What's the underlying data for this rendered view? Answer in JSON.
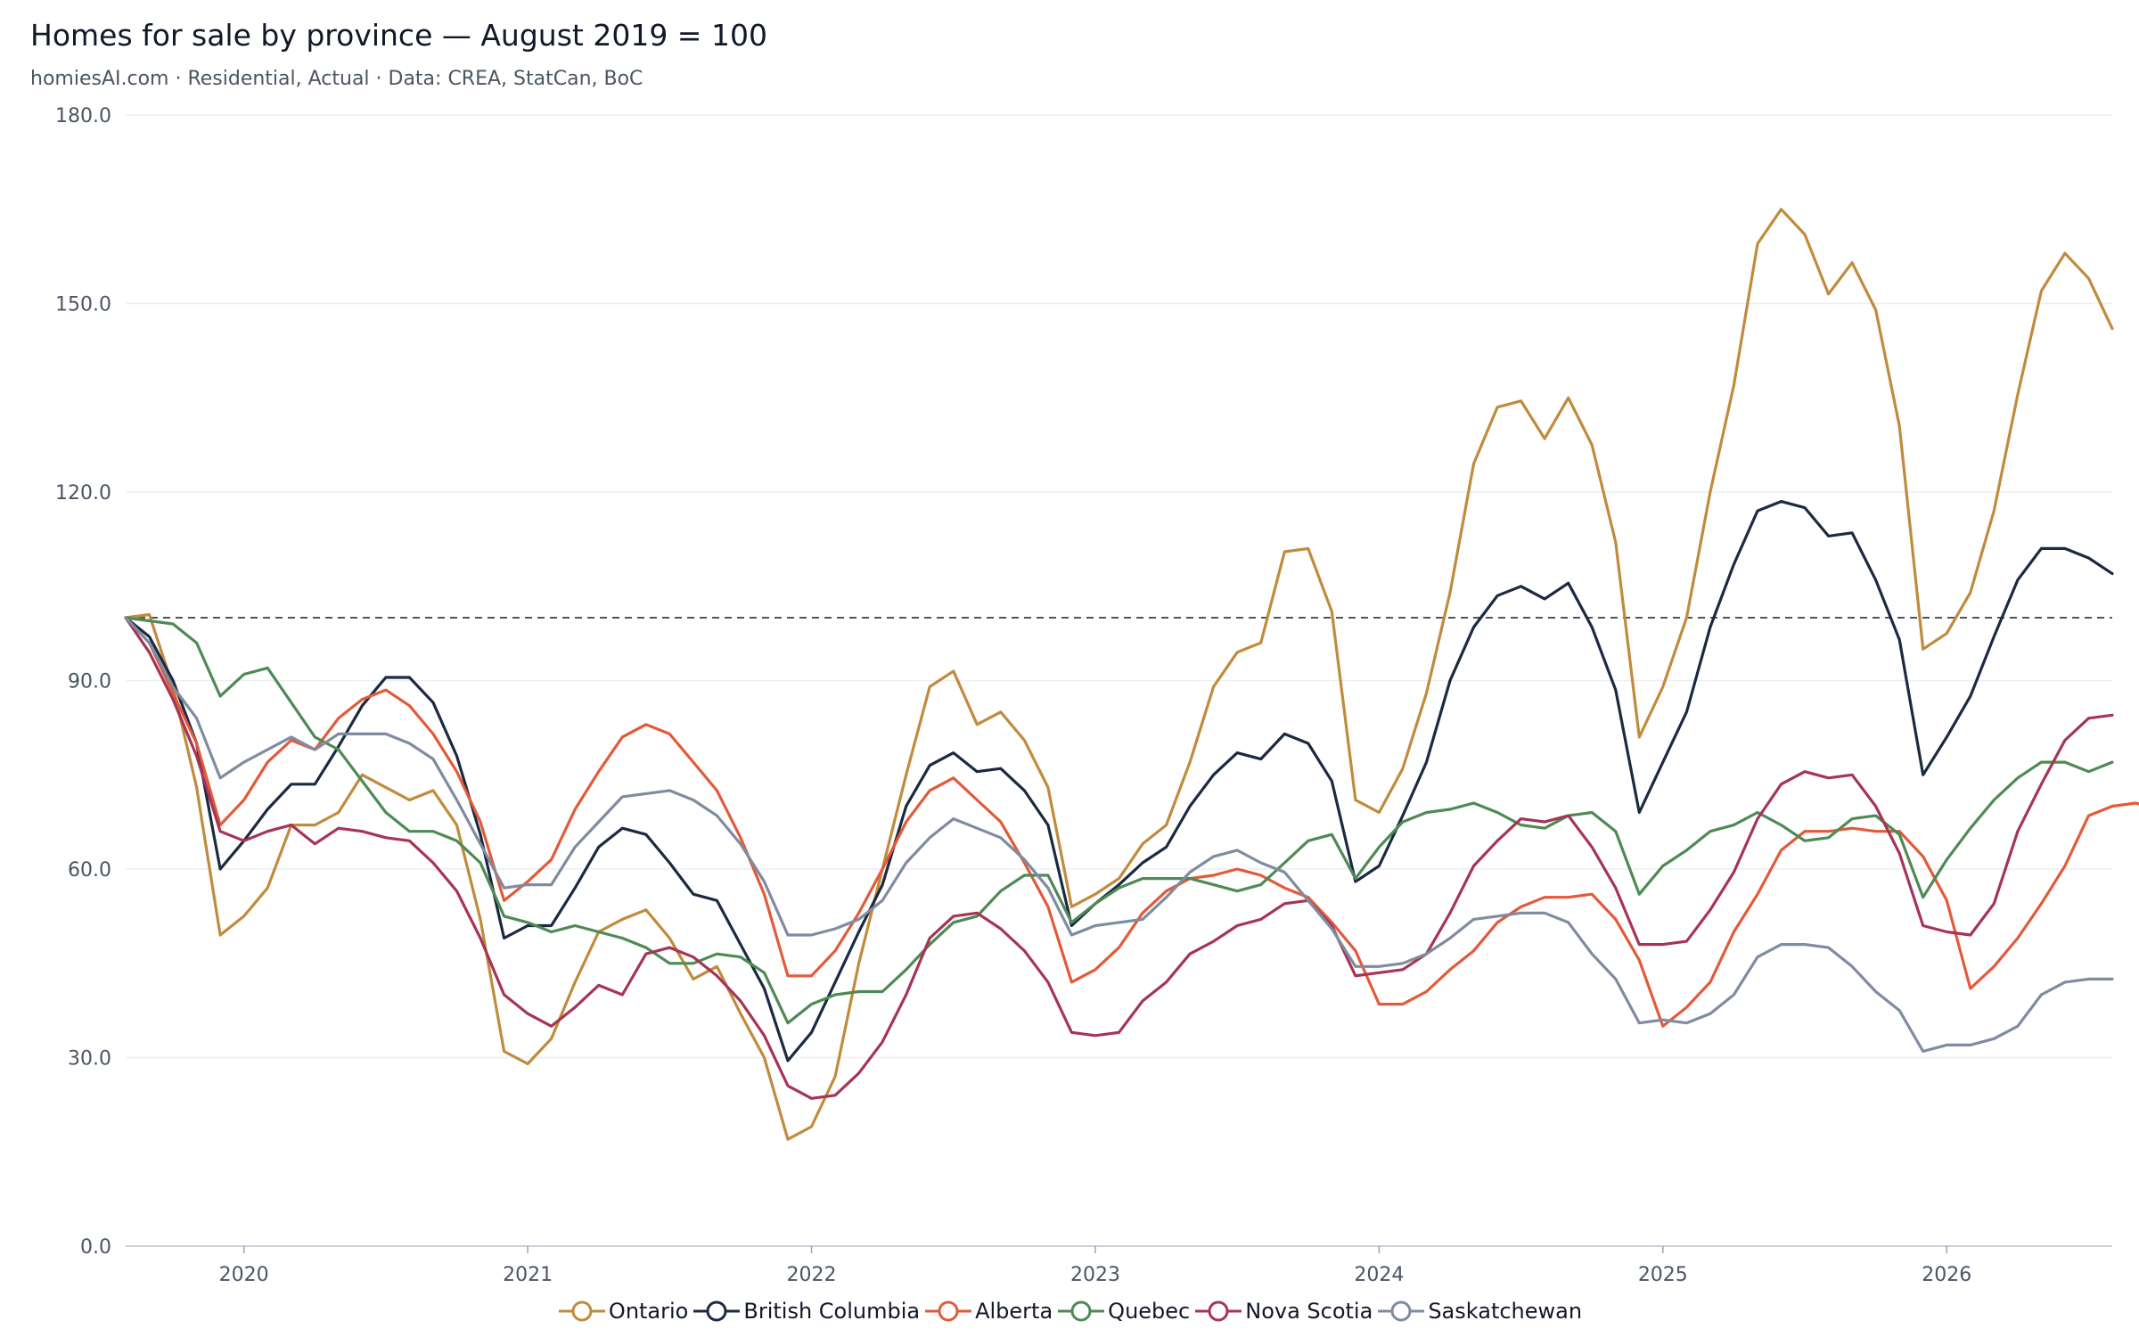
{
  "chart_data": {
    "type": "line",
    "title": "Homes for sale by province — August 2019 = 100",
    "subtitle": "homiesAI.com  ·  Residential, Actual · Data: CREA, StatCan, BoC",
    "xlabel": "",
    "ylabel": "",
    "ylim": [
      0,
      180
    ],
    "yticks": [
      "0.0",
      "30.0",
      "60.0",
      "90.0",
      "120.0",
      "150.0",
      "180.0"
    ],
    "xticks": [
      "2020",
      "2021",
      "2022",
      "2023",
      "2024",
      "2025",
      "2026"
    ],
    "x_start": "2019-08",
    "x_end": "2026-08",
    "reference_line": 100,
    "grid": true,
    "legend_position": "bottom",
    "series": [
      {
        "name": "Ontario",
        "color": "#c08b3c",
        "values": [
          100,
          100.5,
          89,
          73,
          49.5,
          52.5,
          57,
          67,
          67,
          69,
          75,
          73,
          71,
          72.5,
          67,
          52,
          31,
          29,
          33,
          42,
          50,
          52,
          53.5,
          49,
          42.5,
          44.5,
          37,
          30,
          17,
          19,
          27,
          45,
          60,
          75,
          89,
          91.5,
          83,
          85,
          80.5,
          73,
          54,
          56,
          58.5,
          64,
          67,
          77,
          89,
          94.5,
          96,
          110.5,
          111,
          101,
          71,
          69,
          76,
          88,
          104,
          124.5,
          133.5,
          134.5,
          128.5,
          135,
          127.5,
          112,
          81,
          89,
          100,
          120,
          137,
          159.5,
          165,
          161,
          151.5,
          156.5,
          149,
          130.5,
          95,
          97.5,
          104,
          117,
          135.5,
          152,
          158,
          154,
          146
        ]
      },
      {
        "name": "British Columbia",
        "color": "#1b2a41",
        "values": [
          100,
          97,
          90,
          80,
          60,
          64.5,
          69.5,
          73.5,
          73.5,
          79.5,
          86,
          90.5,
          90.5,
          86.5,
          78,
          65.5,
          49,
          51,
          51,
          57,
          63.5,
          66.5,
          65.5,
          61,
          56,
          55,
          48,
          41,
          29.5,
          34,
          42,
          50,
          57.5,
          70,
          76.5,
          78.5,
          75.5,
          76,
          72.5,
          67,
          51,
          54.5,
          57.5,
          61,
          63.5,
          70,
          75,
          78.5,
          77.5,
          81.5,
          80,
          74,
          58,
          60.5,
          68.5,
          77,
          90,
          98.5,
          103.5,
          105,
          103,
          105.5,
          98.5,
          88.5,
          69,
          77,
          85,
          98.5,
          108.5,
          117,
          118.5,
          117.5,
          113,
          113.5,
          106,
          96.5,
          75,
          81,
          87.5,
          97,
          106,
          111,
          111,
          109.5,
          107
        ]
      },
      {
        "name": "Alberta",
        "color": "#e35a3a",
        "values": [
          100,
          96,
          88,
          80,
          67,
          71,
          77,
          80.5,
          79,
          84,
          87,
          88.5,
          86,
          81.5,
          75.5,
          67.5,
          55,
          58,
          61.5,
          69.5,
          75.5,
          81,
          83,
          81.5,
          77,
          72.5,
          65,
          56,
          43,
          43,
          47,
          53,
          60,
          67.5,
          72.5,
          74.5,
          71,
          67.5,
          61,
          54,
          42,
          44,
          47.5,
          53,
          56.5,
          58.5,
          59,
          60,
          59,
          57,
          55.5,
          51.5,
          47,
          38.5,
          38.5,
          40.5,
          44,
          47,
          51.5,
          54,
          55.5,
          55.5,
          56,
          52,
          45.5,
          35,
          38,
          42,
          50,
          56,
          63,
          66,
          66,
          66.5,
          66,
          66,
          62,
          55,
          41,
          44.5,
          49,
          54.5,
          60.5,
          68.5,
          70,
          70.5,
          69.5
        ]
      },
      {
        "name": "Quebec",
        "color": "#4e8a55",
        "values": [
          100,
          99.5,
          99,
          96,
          87.5,
          91,
          92,
          86.5,
          81,
          79,
          74,
          69,
          66,
          66,
          64.5,
          61,
          52.5,
          51.5,
          50,
          51,
          50,
          49,
          47.5,
          45,
          45,
          46.5,
          46,
          43.5,
          35.5,
          38.5,
          40,
          40.5,
          40.5,
          44,
          48,
          51.5,
          52.5,
          56.5,
          59,
          59,
          51.5,
          54.5,
          57,
          58.5,
          58.5,
          58.5,
          57.5,
          56.5,
          57.5,
          61,
          64.5,
          65.5,
          58.5,
          63.5,
          67.5,
          69,
          69.5,
          70.5,
          69,
          67,
          66.5,
          68.5,
          69,
          66,
          56,
          60.5,
          63,
          66,
          67,
          69,
          67,
          64.5,
          65,
          68,
          68.5,
          65.5,
          55.5,
          61.5,
          66.5,
          71,
          74.5,
          77,
          77,
          75.5,
          77
        ]
      },
      {
        "name": "Nova Scotia",
        "color": "#a63456",
        "values": [
          100,
          94.5,
          87,
          78,
          66,
          64.5,
          66,
          67,
          64,
          66.5,
          66,
          65,
          64.5,
          61,
          56.5,
          49,
          40,
          37,
          35,
          38,
          41.5,
          40,
          46.5,
          47.5,
          46,
          43,
          39,
          33.5,
          25.5,
          23.5,
          24,
          27.5,
          32.5,
          40,
          49,
          52.5,
          53,
          50.5,
          47,
          42,
          34,
          33.5,
          34,
          39,
          42,
          46.5,
          48.5,
          51,
          52,
          54.5,
          55,
          51,
          43,
          43.5,
          44,
          46.5,
          53,
          60.5,
          64.5,
          68,
          67.5,
          68.5,
          63.5,
          57,
          48,
          48,
          48.5,
          53.5,
          59.5,
          68,
          73.5,
          75.5,
          74.5,
          75,
          70,
          62.5,
          51,
          50,
          49.5,
          54.5,
          66,
          73.5,
          80.5,
          84,
          84.5
        ]
      },
      {
        "name": "Saskatchewan",
        "color": "#7f8ba0",
        "values": [
          100,
          96,
          89,
          84,
          74.5,
          77,
          79,
          81,
          79,
          81.5,
          81.5,
          81.5,
          80,
          77.5,
          71,
          64,
          57,
          57.5,
          57.5,
          63.5,
          67.5,
          71.5,
          72,
          72.5,
          71,
          68.5,
          64,
          58,
          49.5,
          49.5,
          50.5,
          52,
          55,
          61,
          65,
          68,
          66.5,
          65,
          61.5,
          57,
          49.5,
          51,
          51.5,
          52,
          55.5,
          59.5,
          62,
          63,
          61,
          59.5,
          55,
          50.5,
          44.5,
          44.5,
          45,
          46.5,
          49,
          52,
          52.5,
          53,
          53,
          51.5,
          46.5,
          42.5,
          35.5,
          36,
          35.5,
          37,
          40,
          46,
          48,
          48,
          47.5,
          44.5,
          40.5,
          37.5,
          31,
          32,
          32,
          33,
          35,
          40,
          42,
          42.5,
          42.5
        ]
      }
    ]
  }
}
